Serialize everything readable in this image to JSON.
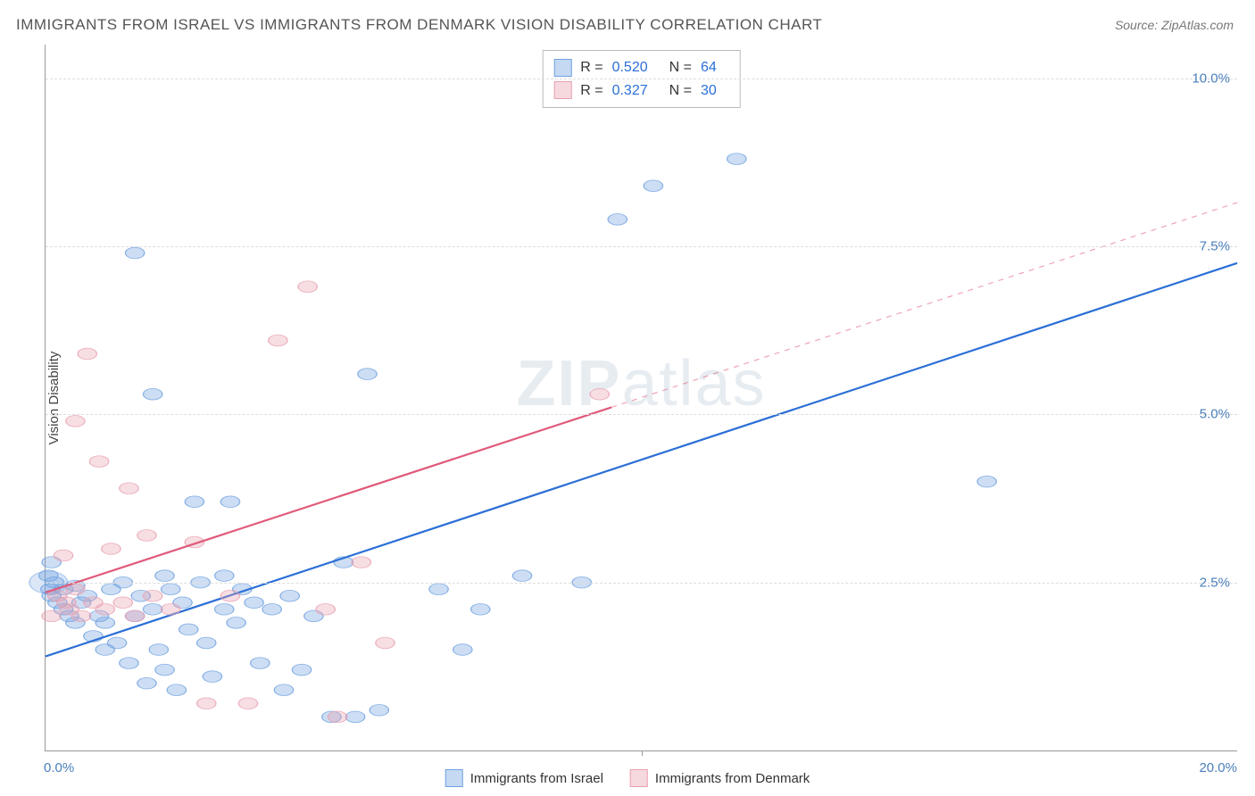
{
  "title": "IMMIGRANTS FROM ISRAEL VS IMMIGRANTS FROM DENMARK VISION DISABILITY CORRELATION CHART",
  "source": "Source: ZipAtlas.com",
  "ylabel": "Vision Disability",
  "watermark_bold": "ZIP",
  "watermark_thin": "atlas",
  "chart": {
    "type": "scatter",
    "xlim": [
      0,
      20
    ],
    "ylim": [
      0,
      10.5
    ],
    "x_ticks": [
      0,
      10,
      20
    ],
    "x_tick_labels": [
      "0.0%",
      "",
      "20.0%"
    ],
    "y_ticks": [
      2.5,
      5.0,
      7.5,
      10.0
    ],
    "y_tick_labels": [
      "2.5%",
      "5.0%",
      "7.5%",
      "10.0%"
    ],
    "grid_color": "#dddddd",
    "axis_color": "#999999",
    "background_color": "#ffffff",
    "tick_label_color": "#4a7ebb",
    "marker_radius": 8,
    "marker_radius_large": 16,
    "marker_fill_opacity": 0.35,
    "marker_stroke_opacity": 0.8,
    "line_width": 2.2
  },
  "series": [
    {
      "key": "israel",
      "label": "Immigrants from Israel",
      "color": "#6fa1e0",
      "line_color": "#2b6fd6",
      "R": "0.520",
      "N": "64",
      "trend": {
        "x1": 0,
        "y1": 1.4,
        "x2": 20,
        "y2": 7.25,
        "solid_until_x": 20
      },
      "points": [
        [
          0.1,
          2.3
        ],
        [
          0.2,
          2.2
        ],
        [
          0.3,
          2.1
        ],
        [
          0.3,
          2.4
        ],
        [
          0.4,
          2.0
        ],
        [
          0.5,
          2.45
        ],
        [
          0.5,
          1.9
        ],
        [
          0.6,
          2.2
        ],
        [
          0.7,
          2.3
        ],
        [
          0.8,
          1.7
        ],
        [
          0.9,
          2.0
        ],
        [
          1.0,
          1.5
        ],
        [
          1.0,
          1.9
        ],
        [
          1.1,
          2.4
        ],
        [
          1.2,
          1.6
        ],
        [
          1.3,
          2.5
        ],
        [
          1.4,
          1.3
        ],
        [
          1.5,
          2.0
        ],
        [
          1.5,
          7.4
        ],
        [
          1.6,
          2.3
        ],
        [
          1.7,
          1.0
        ],
        [
          1.8,
          5.3
        ],
        [
          1.8,
          2.1
        ],
        [
          1.9,
          1.5
        ],
        [
          2.0,
          2.6
        ],
        [
          2.0,
          1.2
        ],
        [
          2.1,
          2.4
        ],
        [
          2.2,
          0.9
        ],
        [
          2.3,
          2.2
        ],
        [
          2.4,
          1.8
        ],
        [
          2.5,
          3.7
        ],
        [
          2.6,
          2.5
        ],
        [
          2.7,
          1.6
        ],
        [
          2.8,
          1.1
        ],
        [
          3.0,
          2.6
        ],
        [
          3.0,
          2.1
        ],
        [
          3.1,
          3.7
        ],
        [
          3.2,
          1.9
        ],
        [
          3.3,
          2.4
        ],
        [
          3.5,
          2.2
        ],
        [
          3.6,
          1.3
        ],
        [
          3.8,
          2.1
        ],
        [
          4.0,
          0.9
        ],
        [
          4.1,
          2.3
        ],
        [
          4.3,
          1.2
        ],
        [
          4.5,
          2.0
        ],
        [
          4.8,
          0.5
        ],
        [
          5.0,
          2.8
        ],
        [
          5.2,
          0.5
        ],
        [
          5.4,
          5.6
        ],
        [
          5.6,
          0.6
        ],
        [
          6.6,
          2.4
        ],
        [
          7.0,
          1.5
        ],
        [
          7.3,
          2.1
        ],
        [
          8.0,
          2.6
        ],
        [
          9.0,
          2.5
        ],
        [
          9.6,
          7.9
        ],
        [
          10.2,
          8.4
        ],
        [
          11.6,
          8.8
        ],
        [
          15.8,
          4.0
        ],
        [
          0.05,
          2.6
        ],
        [
          0.1,
          2.8
        ],
        [
          0.15,
          2.5
        ],
        [
          0.08,
          2.4
        ]
      ]
    },
    {
      "key": "denmark",
      "label": "Immigrants from Denmark",
      "color": "#e8a0b0",
      "line_color": "#e05a7a",
      "R": "0.327",
      "N": "30",
      "trend": {
        "x1": 0,
        "y1": 2.35,
        "x2": 20,
        "y2": 8.15,
        "solid_until_x": 9.5
      },
      "points": [
        [
          0.1,
          2.0
        ],
        [
          0.2,
          2.3
        ],
        [
          0.3,
          2.9
        ],
        [
          0.35,
          2.2
        ],
        [
          0.4,
          2.1
        ],
        [
          0.5,
          2.4
        ],
        [
          0.5,
          4.9
        ],
        [
          0.6,
          2.0
        ],
        [
          0.7,
          5.9
        ],
        [
          0.8,
          2.2
        ],
        [
          0.9,
          4.3
        ],
        [
          1.0,
          2.1
        ],
        [
          1.1,
          3.0
        ],
        [
          1.3,
          2.2
        ],
        [
          1.4,
          3.9
        ],
        [
          1.5,
          2.0
        ],
        [
          1.7,
          3.2
        ],
        [
          1.8,
          2.3
        ],
        [
          2.1,
          2.1
        ],
        [
          2.5,
          3.1
        ],
        [
          2.7,
          0.7
        ],
        [
          3.1,
          2.3
        ],
        [
          3.4,
          0.7
        ],
        [
          3.9,
          6.1
        ],
        [
          4.4,
          6.9
        ],
        [
          4.7,
          2.1
        ],
        [
          5.3,
          2.8
        ],
        [
          5.7,
          1.6
        ],
        [
          4.9,
          0.5
        ],
        [
          9.3,
          5.3
        ]
      ]
    }
  ],
  "stats_box": {
    "rows": [
      {
        "swatch": "israel",
        "R_label": "R =",
        "R_val": "0.520",
        "N_label": "N =",
        "N_val": "64"
      },
      {
        "swatch": "denmark",
        "R_label": "R =",
        "R_val": "0.327",
        "N_label": "N =",
        "N_val": "30"
      }
    ]
  },
  "legend": {
    "items": [
      {
        "swatch": "israel",
        "label": "Immigrants from Israel"
      },
      {
        "swatch": "denmark",
        "label": "Immigrants from Denmark"
      }
    ]
  }
}
